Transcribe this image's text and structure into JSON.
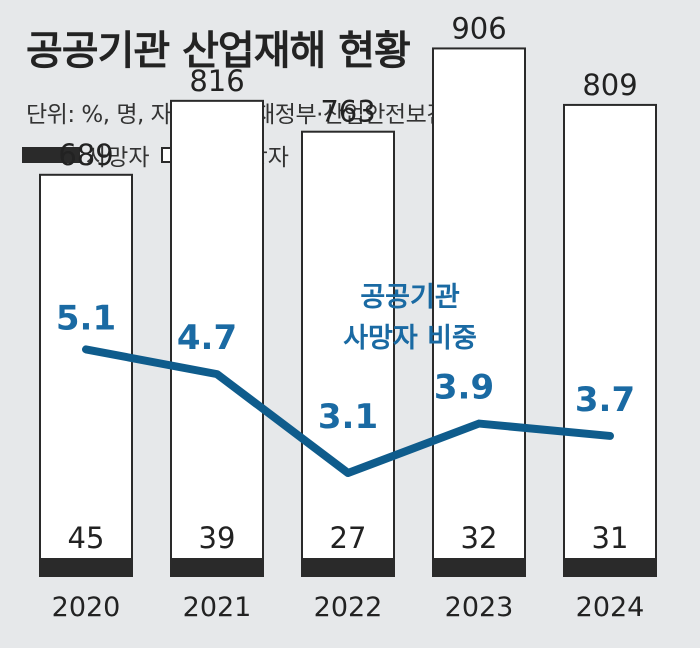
{
  "header": {
    "title": "공공기관 산업재해 현황",
    "subtitle": "단위: %, 명,  자료 : 기획재정부·산업안전보건공단"
  },
  "colors": {
    "background": "#e6e8ea",
    "bar_fill": "#ffffff",
    "bar_stroke": "#2a2a2a",
    "death_fill": "#2a2a2a",
    "line": "#0f5c8c",
    "line_label": "#1a6aa3"
  },
  "chart_data": {
    "type": "bar",
    "categories": [
      "2020",
      "2021",
      "2022",
      "2023",
      "2024"
    ],
    "series": [
      {
        "name": "사망자",
        "values": [
          45,
          39,
          27,
          32,
          31
        ]
      },
      {
        "name": "부상자",
        "values": [
          689,
          816,
          763,
          906,
          809
        ]
      }
    ],
    "line_series": {
      "name": "공공기관 사망자 비중",
      "label_lines": [
        "공공기관",
        "사망자 비중"
      ],
      "values": [
        5.1,
        4.7,
        3.1,
        3.9,
        3.7
      ],
      "labels": [
        "5.1",
        "4.7",
        "3.1",
        "3.9",
        "3.7"
      ]
    },
    "legend": [
      "사망자",
      "부상자"
    ],
    "legend_position": "top-left"
  }
}
